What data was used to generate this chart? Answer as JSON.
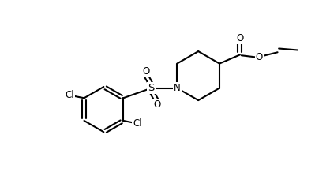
{
  "background_color": "#ffffff",
  "line_color": "#000000",
  "line_width": 1.5,
  "font_size": 8.5,
  "figsize": [
    3.99,
    2.18
  ],
  "dpi": 100,
  "xlim": [
    0,
    10
  ],
  "ylim": [
    0,
    5.45
  ]
}
